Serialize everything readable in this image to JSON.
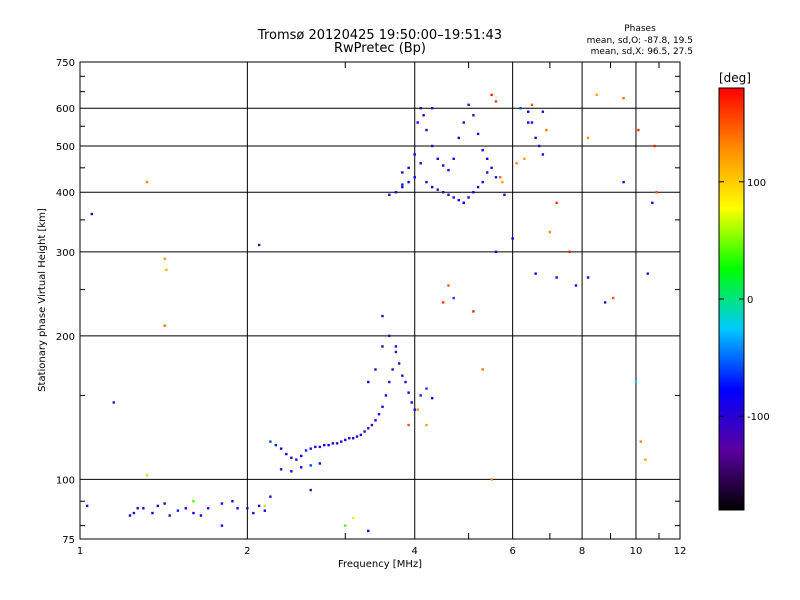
{
  "chart_data": {
    "type": "scatter",
    "title": "Tromsø 20120425 19:50:00–19:51:43",
    "subtitle": "RwPretec (Bp)",
    "xlabel": "Frequency [MHz]",
    "ylabel": "Stationary phase Virtual Height [km]",
    "xscale": "log",
    "yscale": "log",
    "xlim": [
      1,
      12
    ],
    "ylim": [
      75,
      750
    ],
    "x_ticks": [
      1,
      2,
      4,
      6,
      8,
      10,
      12
    ],
    "y_ticks": [
      75,
      100,
      200,
      300,
      400,
      500,
      600,
      750
    ],
    "grid": true,
    "phase_info": {
      "heading": "Phases",
      "line1": "mean, sd,O: -87.8, 19.5",
      "line2": "mean, sd,X: 96.5, 27.5"
    },
    "colorbar": {
      "label": "[deg]",
      "range": [
        -180,
        180
      ],
      "ticks": [
        100,
        0,
        -100
      ],
      "colors": [
        "#000000",
        "#5a00a0",
        "#0000ff",
        "#00c8ff",
        "#00ff00",
        "#ffff00",
        "#ff8c00",
        "#ff0000"
      ]
    },
    "series": [
      {
        "values": [
          [
            1.03,
            88
          ],
          [
            1.23,
            84
          ],
          [
            1.27,
            87
          ],
          [
            1.3,
            87
          ],
          [
            1.35,
            85
          ],
          [
            1.38,
            88
          ],
          [
            1.42,
            89
          ],
          [
            1.45,
            84
          ],
          [
            1.5,
            86
          ],
          [
            1.55,
            87
          ],
          [
            1.6,
            85
          ],
          [
            1.65,
            84
          ],
          [
            1.7,
            87
          ],
          [
            1.8,
            89
          ],
          [
            1.88,
            90
          ],
          [
            1.92,
            87
          ],
          [
            2.0,
            87
          ],
          [
            2.05,
            85
          ],
          [
            2.1,
            88
          ],
          [
            2.15,
            86
          ],
          [
            2.2,
            120
          ],
          [
            2.25,
            118
          ],
          [
            2.3,
            116
          ],
          [
            2.35,
            113
          ],
          [
            2.4,
            111
          ],
          [
            2.45,
            110
          ],
          [
            2.5,
            112
          ],
          [
            2.55,
            115
          ],
          [
            2.6,
            116
          ],
          [
            2.65,
            117
          ],
          [
            2.7,
            117
          ],
          [
            2.75,
            118
          ],
          [
            2.8,
            118
          ],
          [
            2.85,
            119
          ],
          [
            2.9,
            119
          ],
          [
            2.95,
            120
          ],
          [
            3.0,
            121
          ],
          [
            3.05,
            122
          ],
          [
            3.1,
            122
          ],
          [
            3.15,
            123
          ],
          [
            3.2,
            124
          ],
          [
            3.25,
            126
          ],
          [
            3.3,
            128
          ],
          [
            3.35,
            130
          ],
          [
            3.4,
            133
          ],
          [
            3.45,
            137
          ],
          [
            3.5,
            142
          ],
          [
            3.55,
            150
          ],
          [
            3.6,
            160
          ],
          [
            3.65,
            170
          ],
          [
            3.7,
            185
          ],
          [
            3.75,
            175
          ],
          [
            3.8,
            165
          ],
          [
            3.85,
            160
          ],
          [
            3.9,
            152
          ],
          [
            3.95,
            145
          ],
          [
            4.0,
            140
          ],
          [
            4.1,
            150
          ],
          [
            4.2,
            155
          ],
          [
            4.3,
            148
          ],
          [
            2.3,
            105
          ],
          [
            2.4,
            104
          ],
          [
            2.5,
            106
          ],
          [
            2.6,
            107
          ],
          [
            2.7,
            108
          ],
          [
            3.3,
            160
          ],
          [
            3.4,
            170
          ],
          [
            3.5,
            190
          ],
          [
            3.6,
            200
          ],
          [
            3.7,
            190
          ],
          [
            3.6,
            395
          ],
          [
            3.7,
            400
          ],
          [
            3.8,
            410
          ],
          [
            3.9,
            420
          ],
          [
            4.0,
            430
          ],
          [
            4.05,
            560
          ],
          [
            4.1,
            600
          ],
          [
            4.15,
            580
          ],
          [
            4.2,
            540
          ],
          [
            4.3,
            500
          ],
          [
            4.4,
            470
          ],
          [
            4.5,
            455
          ],
          [
            4.6,
            445
          ],
          [
            4.7,
            470
          ],
          [
            4.8,
            520
          ],
          [
            4.9,
            560
          ],
          [
            5.0,
            610
          ],
          [
            5.1,
            580
          ],
          [
            5.2,
            530
          ],
          [
            5.3,
            490
          ],
          [
            5.4,
            470
          ],
          [
            5.5,
            450
          ],
          [
            5.6,
            430
          ],
          [
            3.8,
            440
          ],
          [
            3.9,
            450
          ],
          [
            4.0,
            480
          ],
          [
            4.1,
            460
          ],
          [
            4.2,
            420
          ],
          [
            4.3,
            410
          ],
          [
            4.4,
            405
          ],
          [
            4.5,
            400
          ],
          [
            4.6,
            395
          ],
          [
            4.7,
            390
          ],
          [
            4.8,
            385
          ],
          [
            4.9,
            380
          ],
          [
            5.0,
            390
          ],
          [
            5.1,
            400
          ],
          [
            5.2,
            410
          ],
          [
            5.3,
            420
          ],
          [
            5.4,
            440
          ],
          [
            6.5,
            560
          ],
          [
            6.6,
            520
          ],
          [
            6.7,
            500
          ],
          [
            6.8,
            480
          ],
          [
            6.4,
            590
          ],
          [
            6.2,
            600
          ]
        ],
        "phases": [
          -90,
          -85,
          -120,
          -100,
          -80,
          -95,
          -90,
          -110,
          -70,
          -100,
          -85,
          -90,
          -95,
          -80,
          -100,
          -85,
          -90,
          -95,
          -100,
          -80,
          -60,
          -70,
          -90,
          -80,
          -95,
          -100,
          -85,
          -70,
          -90,
          -100,
          -95,
          -85,
          -80,
          -90,
          -100,
          -110,
          -90,
          -85,
          -95,
          -100,
          -90,
          -100,
          -120,
          -110,
          -95,
          -90,
          -100,
          -105,
          -110,
          -115,
          -120,
          -110,
          -100,
          -95,
          -90,
          -85,
          -80,
          -70,
          -60,
          -80,
          -70,
          -80,
          -90,
          -60,
          -75,
          -100,
          -110,
          -120,
          -110,
          -100,
          -90,
          -95,
          -100,
          -90,
          -85,
          -95,
          -100,
          -105,
          -110,
          -100,
          -90,
          -85,
          -80,
          -95,
          -100,
          -110,
          -120,
          -115,
          -100,
          -90,
          -85,
          -80,
          -70,
          -95,
          -100,
          -90,
          -85,
          -90,
          -95,
          -100,
          -110,
          -100,
          -95,
          -90,
          -85,
          -80,
          -90,
          -95,
          -100,
          -105,
          -90,
          -100,
          -110,
          -95,
          -80,
          -60
        ]
      },
      {
        "values": [
          [
            1.32,
            420
          ],
          [
            1.42,
            290
          ],
          [
            1.43,
            275
          ],
          [
            1.42,
            210
          ],
          [
            1.32,
            102
          ],
          [
            2.15,
            88
          ],
          [
            3.0,
            80
          ],
          [
            3.1,
            83
          ],
          [
            3.9,
            130
          ],
          [
            4.05,
            140
          ],
          [
            4.2,
            130
          ],
          [
            4.5,
            235
          ],
          [
            4.6,
            255
          ],
          [
            5.1,
            225
          ],
          [
            5.3,
            170
          ],
          [
            5.5,
            100
          ],
          [
            5.7,
            430
          ],
          [
            5.75,
            420
          ],
          [
            5.5,
            640
          ],
          [
            5.6,
            620
          ],
          [
            6.1,
            460
          ],
          [
            6.3,
            470
          ],
          [
            6.5,
            610
          ],
          [
            6.9,
            540
          ],
          [
            7.2,
            380
          ],
          [
            7.6,
            300
          ],
          [
            8.2,
            520
          ],
          [
            8.5,
            640
          ],
          [
            9.1,
            240
          ],
          [
            9.5,
            630
          ],
          [
            10.1,
            540
          ],
          [
            10.2,
            120
          ],
          [
            10.4,
            110
          ],
          [
            10.8,
            500
          ],
          [
            10.9,
            400
          ],
          [
            7.0,
            330
          ]
        ],
        "phases": [
          130,
          120,
          110,
          140,
          100,
          60,
          40,
          70,
          150,
          130,
          120,
          160,
          150,
          170,
          140,
          130,
          140,
          120,
          170,
          160,
          130,
          120,
          150,
          140,
          160,
          170,
          130,
          120,
          150,
          140,
          160,
          130,
          120,
          170,
          150,
          130
        ]
      },
      {
        "values": [
          [
            1.05,
            360
          ],
          [
            1.15,
            145
          ],
          [
            2.1,
            310
          ],
          [
            3.5,
            220
          ],
          [
            4.3,
            600
          ],
          [
            5.6,
            300
          ],
          [
            6.0,
            320
          ],
          [
            6.6,
            270
          ],
          [
            7.2,
            265
          ],
          [
            7.8,
            255
          ],
          [
            8.2,
            265
          ],
          [
            8.8,
            235
          ],
          [
            9.5,
            420
          ],
          [
            10.5,
            270
          ],
          [
            10.7,
            380
          ],
          [
            1.25,
            85
          ],
          [
            6.8,
            590
          ],
          [
            4.7,
            240
          ],
          [
            3.8,
            415
          ],
          [
            5.8,
            395
          ],
          [
            6.4,
            560
          ],
          [
            1.8,
            80
          ],
          [
            2.6,
            95
          ],
          [
            2.2,
            92
          ],
          [
            3.3,
            78
          ],
          [
            4.9,
            380
          ],
          [
            1.6,
            90
          ],
          [
            10.0,
            160
          ]
        ],
        "phases": [
          -110,
          -115,
          -120,
          -110,
          -90,
          -85,
          -80,
          -90,
          -95,
          -100,
          -105,
          -110,
          -95,
          -100,
          -90,
          -80,
          -100,
          -60,
          -70,
          -90,
          -95,
          -80,
          -120,
          -100,
          -90,
          -85,
          40,
          -20
        ]
      }
    ]
  }
}
